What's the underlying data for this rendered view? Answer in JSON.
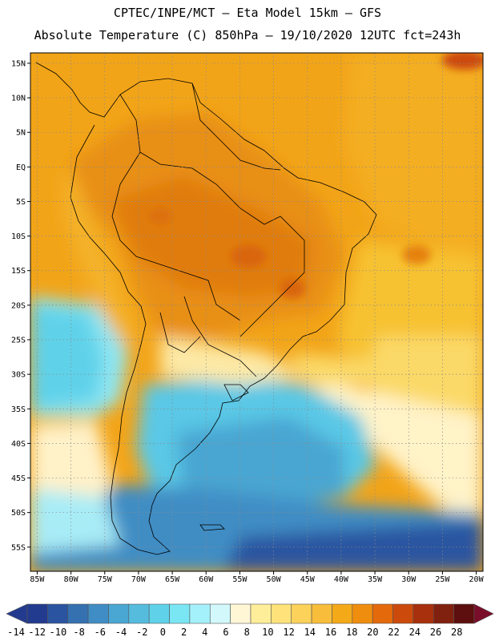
{
  "header": {
    "line1": "CPTEC/INPE/MCT –  Eta Model 15km – GFS",
    "line2": "Absolute Temperature (C) 850hPa – 19/10/2020 12UTC fct=243h"
  },
  "axes": {
    "lat_labels": [
      "15N",
      "10N",
      "5N",
      "EQ",
      "5S",
      "10S",
      "15S",
      "20S",
      "25S",
      "30S",
      "35S",
      "40S",
      "45S",
      "50S",
      "55S"
    ],
    "lat_values": [
      15,
      10,
      5,
      0,
      -5,
      -10,
      -15,
      -20,
      -25,
      -30,
      -35,
      -40,
      -45,
      -50,
      -55
    ],
    "lon_labels": [
      "85W",
      "80W",
      "75W",
      "70W",
      "65W",
      "60W",
      "55W",
      "50W",
      "45W",
      "40W",
      "35W",
      "30W",
      "25W",
      "20W"
    ],
    "lon_values": [
      -85,
      -80,
      -75,
      -70,
      -65,
      -60,
      -55,
      -50,
      -45,
      -40,
      -35,
      -30,
      -25,
      -20
    ],
    "lon_range": [
      -86,
      -19
    ],
    "lat_range": [
      -58.5,
      16.5
    ]
  },
  "colorbar": {
    "labels": [
      "-14",
      "-12",
      "-10",
      "-8",
      "-6",
      "-4",
      "-2",
      "0",
      "2",
      "4",
      "6",
      "8",
      "10",
      "12",
      "14",
      "16",
      "18",
      "20",
      "22",
      "24",
      "26",
      "28"
    ],
    "colors": [
      "#233b8e",
      "#2b54a0",
      "#3571b0",
      "#3f8dc4",
      "#4aa6d2",
      "#55bcde",
      "#5fd2ea",
      "#7ae6f4",
      "#a5f1fb",
      "#d2f8fb",
      "#fff6d6",
      "#ffee99",
      "#ffe37a",
      "#fcd25a",
      "#f8be3b",
      "#f4a918",
      "#ef8d0e",
      "#e4690b",
      "#cc4a0b",
      "#a8300c",
      "#80200e",
      "#5c0f0e"
    ]
  }
}
